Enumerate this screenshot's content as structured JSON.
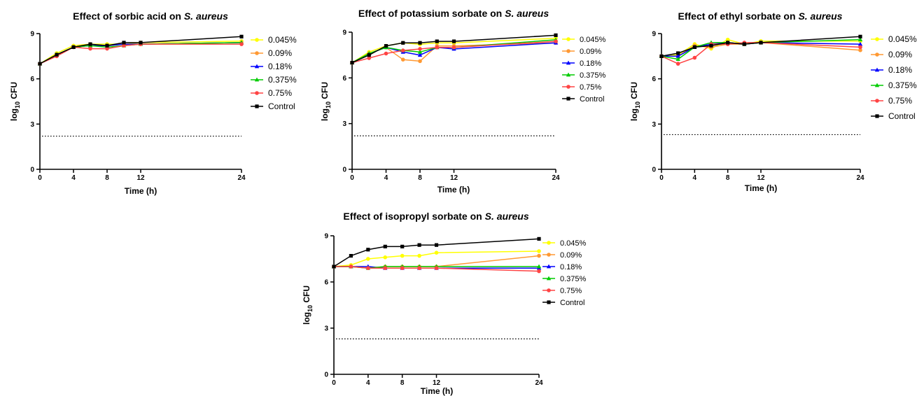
{
  "chart_data": [
    {
      "type": "line",
      "title_prefix": "Effect of sorbic acid on ",
      "title_species": "S. aureus",
      "xlabel": "Time (h)",
      "ylabel_main": "log",
      "ylabel_sub": "10",
      "ylabel_tail": " CFU",
      "x": [
        0,
        2,
        4,
        6,
        8,
        10,
        12,
        24
      ],
      "xticks": [
        0,
        4,
        8,
        12,
        24
      ],
      "yticks": [
        0,
        3,
        6,
        9
      ],
      "xlim": [
        0,
        24
      ],
      "ylim": [
        0,
        9
      ],
      "detection_limit": 2.2,
      "grid": false,
      "legend_position": "right",
      "series": [
        {
          "name": "0.045%",
          "color": "#ffff00",
          "marker": "circle",
          "values": [
            7.0,
            7.7,
            8.2,
            8.3,
            8.3,
            8.3,
            8.4,
            8.5
          ]
        },
        {
          "name": "0.09%",
          "color": "#ff9933",
          "marker": "circle",
          "values": [
            7.0,
            7.6,
            8.1,
            8.2,
            8.2,
            8.3,
            8.3,
            8.4
          ]
        },
        {
          "name": "0.18%",
          "color": "#0000ff",
          "marker": "triangle",
          "values": [
            7.0,
            7.6,
            8.1,
            8.2,
            8.2,
            8.3,
            8.3,
            8.4
          ]
        },
        {
          "name": "0.375%",
          "color": "#00cc00",
          "marker": "triangle",
          "values": [
            7.0,
            7.6,
            8.1,
            8.2,
            8.1,
            8.2,
            8.3,
            8.4
          ]
        },
        {
          "name": "0.75%",
          "color": "#ff4444",
          "marker": "circle",
          "values": [
            7.0,
            7.5,
            8.1,
            8.0,
            8.0,
            8.2,
            8.3,
            8.3
          ]
        },
        {
          "name": "Control",
          "color": "#000000",
          "marker": "square",
          "values": [
            7.0,
            7.6,
            8.1,
            8.3,
            8.2,
            8.4,
            8.4,
            8.8
          ]
        }
      ]
    },
    {
      "type": "line",
      "title_prefix": "Effect of potassium sorbate on ",
      "title_species": "S. aureus",
      "xlabel": "Time (h)",
      "ylabel_main": "log",
      "ylabel_sub": "10",
      "ylabel_tail": " CFU",
      "x": [
        0,
        2,
        4,
        6,
        8,
        10,
        12,
        24
      ],
      "xticks": [
        0,
        4,
        8,
        12,
        24
      ],
      "yticks": [
        0,
        3,
        6,
        9
      ],
      "xlim": [
        0,
        24
      ],
      "ylim": [
        0,
        9
      ],
      "detection_limit": 2.2,
      "grid": false,
      "legend_position": "right",
      "series": [
        {
          "name": "0.045%",
          "color": "#ffff00",
          "marker": "circle",
          "values": [
            7.0,
            7.7,
            8.1,
            8.3,
            8.2,
            8.3,
            8.3,
            8.6
          ]
        },
        {
          "name": "0.09%",
          "color": "#ff9933",
          "marker": "circle",
          "values": [
            7.0,
            7.6,
            8.0,
            7.2,
            7.1,
            8.1,
            8.1,
            8.3
          ]
        },
        {
          "name": "0.18%",
          "color": "#0000ff",
          "marker": "triangle",
          "values": [
            7.0,
            7.6,
            8.0,
            7.7,
            7.5,
            8.0,
            7.9,
            8.3
          ]
        },
        {
          "name": "0.375%",
          "color": "#00cc00",
          "marker": "triangle",
          "values": [
            7.0,
            7.6,
            8.0,
            7.8,
            7.7,
            8.0,
            8.0,
            8.5
          ]
        },
        {
          "name": "0.75%",
          "color": "#ff4444",
          "marker": "circle",
          "values": [
            7.0,
            7.3,
            7.6,
            7.8,
            7.9,
            8.0,
            8.0,
            8.4
          ]
        },
        {
          "name": "Control",
          "color": "#000000",
          "marker": "square",
          "values": [
            7.0,
            7.5,
            8.1,
            8.3,
            8.3,
            8.4,
            8.4,
            8.8
          ]
        }
      ]
    },
    {
      "type": "line",
      "title_prefix": "Effect of ethyl sorbate on ",
      "title_species": "S. aureus",
      "xlabel": "Time (h)",
      "ylabel_main": "log",
      "ylabel_sub": "10",
      "ylabel_tail": " CFU",
      "x": [
        0,
        2,
        4,
        6,
        8,
        10,
        12,
        24
      ],
      "xticks": [
        0,
        4,
        8,
        12,
        24
      ],
      "yticks": [
        0,
        3,
        6,
        9
      ],
      "xlim": [
        0,
        24
      ],
      "ylim": [
        0,
        9
      ],
      "detection_limit": 2.3,
      "grid": false,
      "legend_position": "right",
      "series": [
        {
          "name": "0.045%",
          "color": "#ffff00",
          "marker": "circle",
          "values": [
            7.5,
            7.6,
            8.3,
            8.0,
            8.6,
            8.3,
            8.5,
            8.5
          ]
        },
        {
          "name": "0.09%",
          "color": "#ff9933",
          "marker": "circle",
          "values": [
            7.5,
            7.5,
            8.2,
            8.1,
            8.3,
            8.3,
            8.4,
            7.9
          ]
        },
        {
          "name": "0.18%",
          "color": "#0000ff",
          "marker": "triangle",
          "values": [
            7.5,
            7.5,
            8.1,
            8.3,
            8.4,
            8.3,
            8.4,
            8.3
          ]
        },
        {
          "name": "0.375%",
          "color": "#00cc00",
          "marker": "triangle",
          "values": [
            7.5,
            7.3,
            8.1,
            8.4,
            8.4,
            8.3,
            8.4,
            8.6
          ]
        },
        {
          "name": "0.75%",
          "color": "#ff4444",
          "marker": "circle",
          "values": [
            7.5,
            7.0,
            7.4,
            8.3,
            8.3,
            8.4,
            8.4,
            8.1
          ]
        },
        {
          "name": "Control",
          "color": "#000000",
          "marker": "square",
          "values": [
            7.5,
            7.7,
            8.1,
            8.2,
            8.4,
            8.3,
            8.4,
            8.8
          ]
        }
      ]
    },
    {
      "type": "line",
      "title_prefix": "Effect of isopropyl sorbate on ",
      "title_species": "S. aureus",
      "xlabel": "Time (h)",
      "ylabel_main": "log",
      "ylabel_sub": "10",
      "ylabel_tail": " CFU",
      "x": [
        0,
        2,
        4,
        6,
        8,
        10,
        12,
        24
      ],
      "xticks": [
        0,
        4,
        8,
        12,
        24
      ],
      "yticks": [
        0,
        3,
        6,
        9
      ],
      "xlim": [
        0,
        24
      ],
      "ylim": [
        0,
        9
      ],
      "detection_limit": 2.3,
      "grid": false,
      "legend_position": "right",
      "series": [
        {
          "name": "0.045%",
          "color": "#ffff00",
          "marker": "circle",
          "values": [
            7.0,
            7.1,
            7.5,
            7.6,
            7.7,
            7.7,
            7.9,
            8.0
          ]
        },
        {
          "name": "0.09%",
          "color": "#ff9933",
          "marker": "circle",
          "values": [
            7.0,
            7.0,
            6.9,
            7.0,
            7.0,
            7.0,
            7.0,
            7.7
          ]
        },
        {
          "name": "0.18%",
          "color": "#0000ff",
          "marker": "triangle",
          "values": [
            7.0,
            7.0,
            7.0,
            6.9,
            6.9,
            6.9,
            6.9,
            6.9
          ]
        },
        {
          "name": "0.375%",
          "color": "#00cc00",
          "marker": "triangle",
          "values": [
            7.0,
            7.0,
            6.9,
            7.0,
            7.0,
            7.0,
            7.0,
            7.0
          ]
        },
        {
          "name": "0.75%",
          "color": "#ff4444",
          "marker": "circle",
          "values": [
            7.0,
            7.0,
            6.9,
            6.9,
            6.9,
            6.9,
            6.9,
            6.7
          ]
        },
        {
          "name": "Control",
          "color": "#000000",
          "marker": "square",
          "values": [
            7.0,
            7.7,
            8.1,
            8.3,
            8.3,
            8.4,
            8.4,
            8.8
          ]
        }
      ]
    }
  ]
}
